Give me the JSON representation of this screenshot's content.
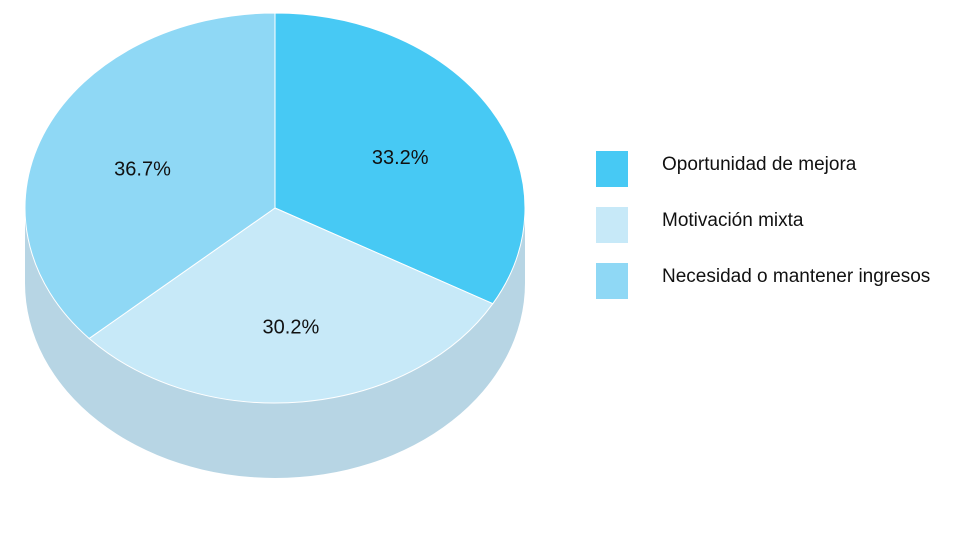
{
  "chart_data": {
    "type": "pie",
    "style": "3d",
    "title": "",
    "slices": [
      {
        "label": "Oportunidad de mejora",
        "value": 33.2,
        "value_label": "33.2%",
        "color": "#47c9f4"
      },
      {
        "label": "Motivación mixta",
        "value": 30.2,
        "value_label": "30.2%",
        "color": "#c7e9f8"
      },
      {
        "label": "Necesidad o mantener ingresos",
        "value": 36.7,
        "value_label": "36.7%",
        "color": "#8fd8f5"
      }
    ],
    "side_color": "#b7d5e4",
    "legend_placement": "right"
  }
}
